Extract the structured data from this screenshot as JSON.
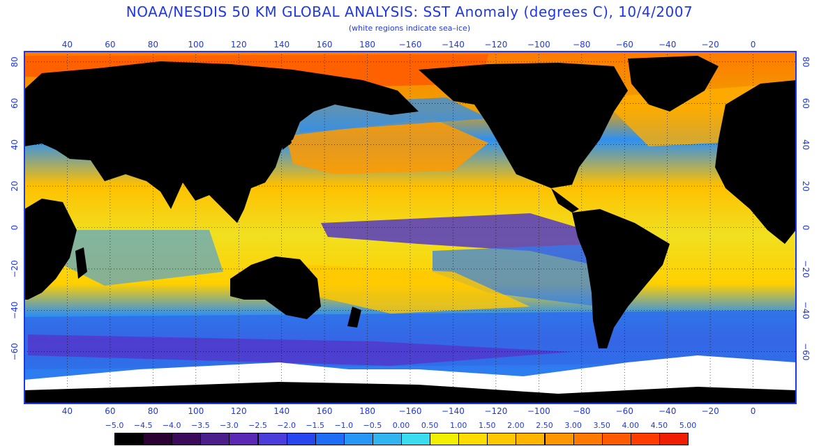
{
  "title": "NOAA/NESDIS 50 KM GLOBAL ANALYSIS: SST Anomaly (degrees C), 10/4/2007",
  "subtitle": "(white regions indicate sea–ice)",
  "map": {
    "lon_ticks": [
      40,
      60,
      80,
      100,
      120,
      140,
      160,
      180,
      -160,
      -140,
      -120,
      -100,
      -80,
      -60,
      -40,
      -20,
      0
    ],
    "lat_ticks": [
      80,
      60,
      40,
      20,
      0,
      -20,
      -40,
      -60
    ],
    "lat_tick_labels": [
      "80",
      "60",
      "40",
      "20",
      "0",
      "−20",
      "−40",
      "−60"
    ],
    "land_color": "#000000",
    "sea_ice_color": "#ffffff",
    "grid_color": "#000000",
    "frame_color": "#1f38e6"
  },
  "colorbar": {
    "labels": [
      "−5.0",
      "−4.5",
      "−4.0",
      "−3.5",
      "−3.0",
      "−2.5",
      "−2.0",
      "−1.5",
      "−1.0",
      "−0.5",
      "0.00",
      "0.50",
      "1.00",
      "1.50",
      "2.00",
      "2.50",
      "3.00",
      "3.50",
      "4.00",
      "4.50",
      "5.00"
    ],
    "colors": [
      "#000000",
      "#2a0032",
      "#3c0a5a",
      "#4b1e8c",
      "#5a28b4",
      "#4b3cdc",
      "#2846f0",
      "#1e6ef5",
      "#2896f5",
      "#32b4f0",
      "#3cdcf0",
      "#f0f000",
      "#ffdc00",
      "#ffc800",
      "#ffb400",
      "#ff9600",
      "#ff7800",
      "#ff5a00",
      "#ff3c00",
      "#f01e00"
    ]
  }
}
